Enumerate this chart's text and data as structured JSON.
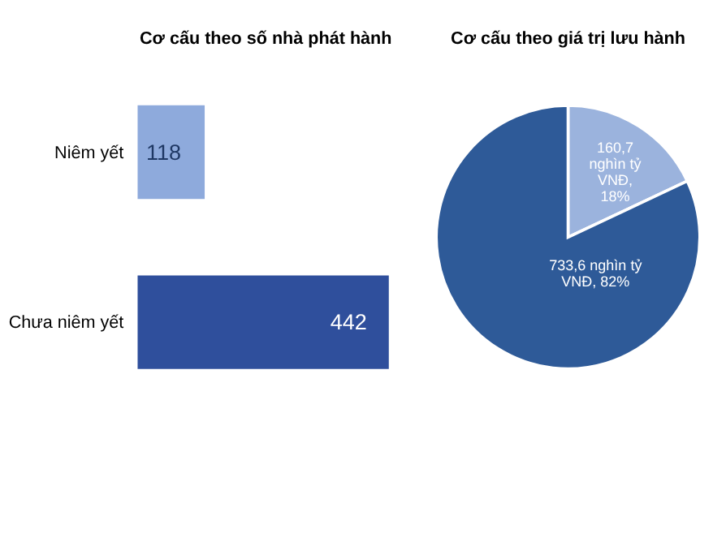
{
  "chart_data": [
    {
      "type": "bar",
      "orientation": "horizontal",
      "title": "Cơ cấu theo số nhà phát hành",
      "categories": [
        "Niêm yết",
        "Chưa niêm yết"
      ],
      "values": [
        118,
        442
      ],
      "colors": [
        "#8eaadc",
        "#2f4f9c"
      ],
      "data_labels": true
    },
    {
      "type": "pie",
      "title": "Cơ cấu theo giá trị lưu hành",
      "categories": [
        null,
        null
      ],
      "values": [
        18,
        82
      ],
      "colors": [
        "#9bb3dd",
        "#2e5a98"
      ],
      "value_labels": [
        "160,7 nghìn tỷ VNĐ, 18%",
        "733,6 nghìn tỷ VNĐ, 82%"
      ]
    }
  ]
}
